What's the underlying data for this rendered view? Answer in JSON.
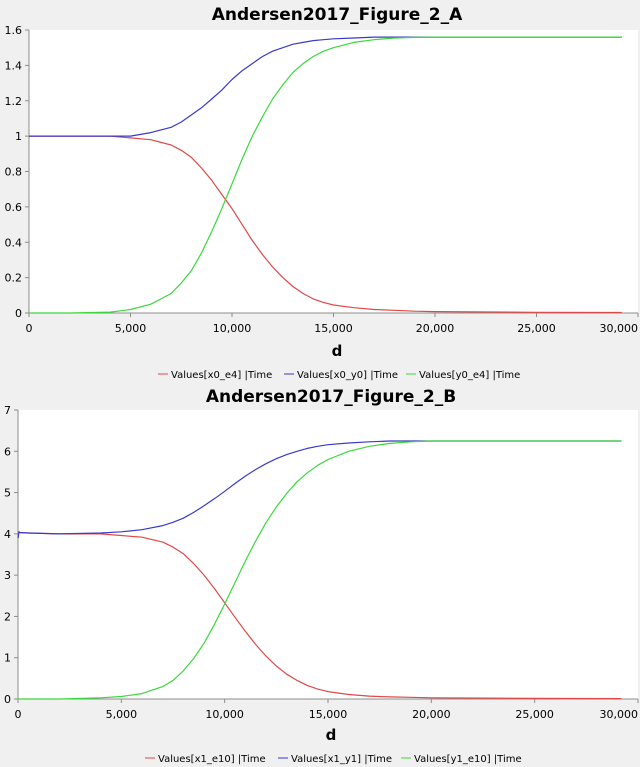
{
  "colors": {
    "red": "#e04848",
    "blue": "#3a3acc",
    "green": "#3cd83c",
    "plot_bg": "#ffffff",
    "page_bg": "#f0f0f0",
    "axis": "#8c8c8c"
  },
  "chart_data": [
    {
      "type": "line",
      "title": "Andersen2017_Figure_2_A",
      "xlabel": "d",
      "ylabel": "",
      "xlim": [
        0,
        30000
      ],
      "ylim": [
        0,
        1.6
      ],
      "x_ticks": [
        0,
        5000,
        10000,
        15000,
        20000,
        25000,
        30000
      ],
      "x_tick_labels": [
        "0",
        "5,000",
        "10,000",
        "15,000",
        "20,000",
        "25,000",
        "30,000"
      ],
      "y_ticks": [
        0,
        0.2,
        0.4,
        0.6,
        0.8,
        1,
        1.2,
        1.4,
        1.6
      ],
      "y_tick_labels": [
        "0",
        "0.2",
        "0.4",
        "0.6",
        "0.8",
        "1",
        "1.2",
        "1.4",
        "1.6"
      ],
      "grid": false,
      "legend_position": "bottom",
      "series": [
        {
          "name": "Values[x0_e4] |Time",
          "color": "#e04848",
          "x": [
            0,
            2000,
            4000,
            5000,
            6000,
            7000,
            7500,
            8000,
            8500,
            9000,
            9500,
            10000,
            10500,
            11000,
            11500,
            12000,
            12500,
            13000,
            13500,
            14000,
            14500,
            15000,
            16000,
            17000,
            18000,
            19000,
            20000,
            25000,
            29200
          ],
          "y": [
            1.0,
            1.0,
            1.0,
            0.99,
            0.98,
            0.95,
            0.92,
            0.88,
            0.82,
            0.75,
            0.67,
            0.59,
            0.5,
            0.41,
            0.33,
            0.26,
            0.2,
            0.15,
            0.11,
            0.08,
            0.06,
            0.045,
            0.03,
            0.02,
            0.015,
            0.01,
            0.008,
            0.004,
            0.003
          ]
        },
        {
          "name": "Values[x0_y0] |Time",
          "color": "#3a3acc",
          "x": [
            0,
            2000,
            4000,
            5000,
            6000,
            7000,
            7500,
            8000,
            8500,
            9000,
            9500,
            10000,
            10500,
            11000,
            11500,
            12000,
            12500,
            13000,
            13500,
            14000,
            14500,
            15000,
            16000,
            17000,
            18000,
            19000,
            20000,
            25000,
            29200
          ],
          "y": [
            1.0,
            1.0,
            1.0,
            1.0,
            1.02,
            1.05,
            1.08,
            1.12,
            1.16,
            1.21,
            1.26,
            1.32,
            1.37,
            1.41,
            1.45,
            1.48,
            1.5,
            1.52,
            1.53,
            1.54,
            1.545,
            1.55,
            1.555,
            1.56,
            1.56,
            1.56,
            1.56,
            1.56,
            1.56
          ]
        },
        {
          "name": "Values[y0_e4] |Time",
          "color": "#3cd83c",
          "x": [
            0,
            2000,
            4000,
            5000,
            6000,
            7000,
            7500,
            8000,
            8500,
            9000,
            9500,
            10000,
            10500,
            11000,
            11500,
            12000,
            12500,
            13000,
            13500,
            14000,
            14500,
            15000,
            16000,
            17000,
            18000,
            19000,
            20000,
            25000,
            29200
          ],
          "y": [
            0.0,
            0.0,
            0.005,
            0.02,
            0.05,
            0.11,
            0.17,
            0.24,
            0.34,
            0.46,
            0.59,
            0.73,
            0.87,
            1.0,
            1.11,
            1.21,
            1.29,
            1.36,
            1.41,
            1.45,
            1.48,
            1.5,
            1.53,
            1.545,
            1.555,
            1.558,
            1.56,
            1.56,
            1.56
          ]
        }
      ]
    },
    {
      "type": "line",
      "title": "Andersen2017_Figure_2_B",
      "xlabel": "d",
      "ylabel": "",
      "xlim": [
        0,
        30000
      ],
      "ylim": [
        0,
        7
      ],
      "x_ticks": [
        0,
        5000,
        10000,
        15000,
        20000,
        25000,
        30000
      ],
      "x_tick_labels": [
        "0",
        "5,000",
        "10,000",
        "15,000",
        "20,000",
        "25,000",
        "30,000"
      ],
      "y_ticks": [
        0,
        1,
        2,
        3,
        4,
        5,
        6,
        7
      ],
      "y_tick_labels": [
        "0",
        "1",
        "2",
        "3",
        "4",
        "5",
        "6",
        "7"
      ],
      "grid": false,
      "legend_position": "bottom",
      "series": [
        {
          "name": "Values[x1_e10] |Time",
          "color": "#e04848",
          "x": [
            0,
            50,
            100,
            500,
            2000,
            4000,
            5000,
            6000,
            7000,
            7500,
            8000,
            8500,
            9000,
            9500,
            10000,
            10500,
            11000,
            11500,
            12000,
            12500,
            13000,
            13500,
            14000,
            14500,
            15000,
            16000,
            17000,
            18000,
            19000,
            20000,
            25000,
            29200
          ],
          "y": [
            3.9,
            4.05,
            4.03,
            4.02,
            4.0,
            4.0,
            3.96,
            3.92,
            3.8,
            3.68,
            3.52,
            3.28,
            3.0,
            2.68,
            2.33,
            1.98,
            1.64,
            1.32,
            1.04,
            0.8,
            0.6,
            0.45,
            0.33,
            0.24,
            0.18,
            0.11,
            0.07,
            0.05,
            0.04,
            0.03,
            0.015,
            0.01
          ]
        },
        {
          "name": "Values[x1_y1] |Time",
          "color": "#3a3acc",
          "x": [
            0,
            50,
            100,
            500,
            2000,
            4000,
            5000,
            6000,
            7000,
            7500,
            8000,
            8500,
            9000,
            9500,
            10000,
            10500,
            11000,
            11500,
            12000,
            12500,
            13000,
            13500,
            14000,
            14500,
            15000,
            16000,
            17000,
            18000,
            19000,
            20000,
            25000,
            29200
          ],
          "y": [
            3.9,
            4.05,
            4.03,
            4.02,
            4.0,
            4.02,
            4.05,
            4.1,
            4.2,
            4.28,
            4.38,
            4.52,
            4.68,
            4.85,
            5.03,
            5.22,
            5.4,
            5.56,
            5.7,
            5.82,
            5.92,
            6.0,
            6.07,
            6.12,
            6.16,
            6.2,
            6.23,
            6.25,
            6.25,
            6.25,
            6.25,
            6.25
          ]
        },
        {
          "name": "Values[y1_e10] |Time",
          "color": "#3cd83c",
          "x": [
            0,
            2000,
            4000,
            5000,
            6000,
            7000,
            7500,
            8000,
            8500,
            9000,
            9500,
            10000,
            10500,
            11000,
            11500,
            12000,
            12500,
            13000,
            13500,
            14000,
            14500,
            15000,
            16000,
            17000,
            18000,
            19000,
            20000,
            25000,
            29200
          ],
          "y": [
            0.0,
            0.0,
            0.03,
            0.06,
            0.13,
            0.3,
            0.45,
            0.68,
            0.98,
            1.35,
            1.8,
            2.3,
            2.82,
            3.34,
            3.83,
            4.27,
            4.65,
            4.98,
            5.26,
            5.48,
            5.66,
            5.8,
            6.0,
            6.12,
            6.19,
            6.23,
            6.25,
            6.25,
            6.25
          ]
        }
      ]
    }
  ]
}
